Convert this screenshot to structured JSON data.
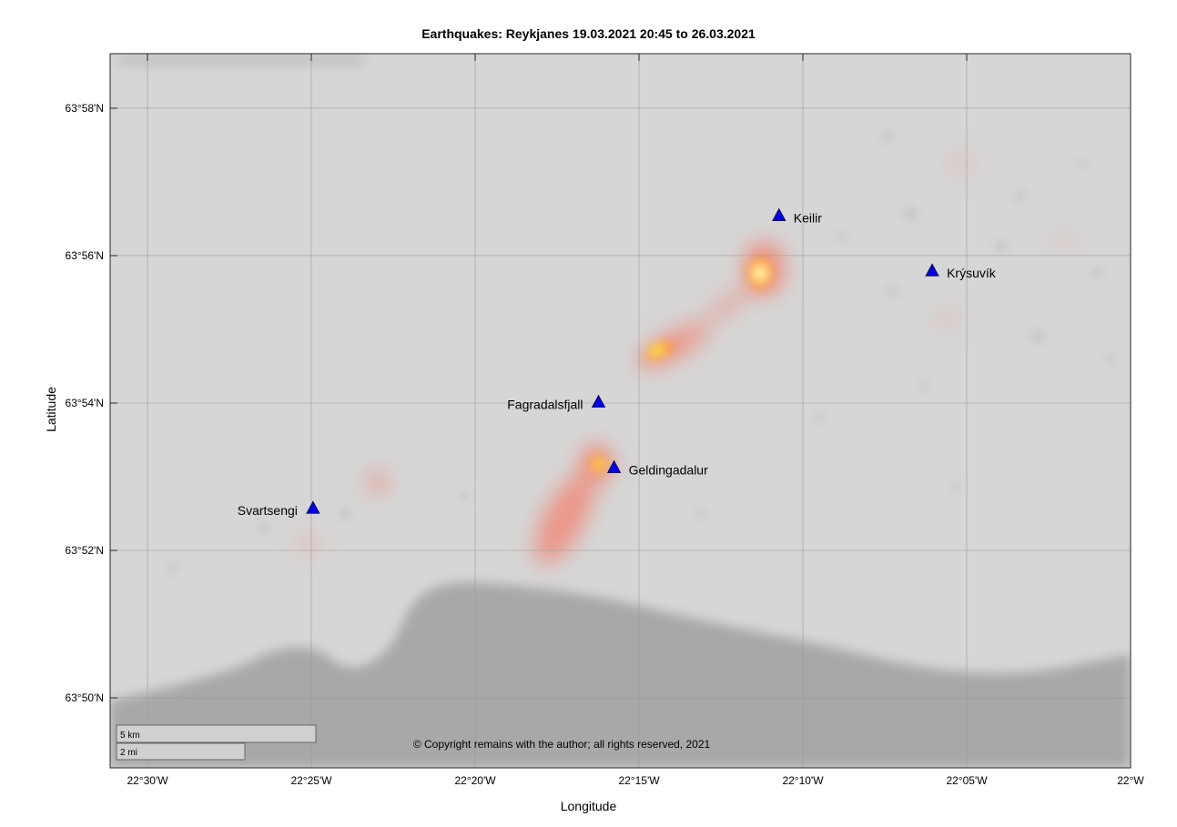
{
  "title": "Earthquakes: Reykjanes 19.03.2021 20:45 to 26.03.2021",
  "xlabel": "Longitude",
  "ylabel": "Latitude",
  "copyright": "© Copyright remains with the author; all rights reserved, 2021",
  "scalebar": {
    "km": "5 km",
    "mi": "2 mi"
  },
  "lat_ticks": [
    {
      "label": "63°58'N",
      "lat": 63.96667
    },
    {
      "label": "63°56'N",
      "lat": 63.93333
    },
    {
      "label": "63°54'N",
      "lat": 63.9
    },
    {
      "label": "63°52'N",
      "lat": 63.86667
    },
    {
      "label": "63°50'N",
      "lat": 63.83333
    }
  ],
  "lon_ticks": [
    {
      "label": "22°30'W",
      "lon": -22.5
    },
    {
      "label": "22°25'W",
      "lon": -22.41667
    },
    {
      "label": "22°20'W",
      "lon": -22.33333
    },
    {
      "label": "22°15'W",
      "lon": -22.25
    },
    {
      "label": "22°10'W",
      "lon": -22.16667
    },
    {
      "label": "22°05'W",
      "lon": -22.08333
    },
    {
      "label": "22°W",
      "lon": -22.0
    }
  ],
  "map_extent": {
    "lon_min": -22.519,
    "lon_max": -22.0,
    "lat_min": 63.8175,
    "lat_max": 63.979
  },
  "landmarks": [
    {
      "name": "Keilir",
      "lon": -22.1788,
      "lat": 63.9425,
      "label_side": "right"
    },
    {
      "name": "Krýsuvík",
      "lon": -22.1009,
      "lat": 63.93,
      "label_side": "right"
    },
    {
      "name": "Fagradalsfjall",
      "lon": -22.2706,
      "lat": 63.9003,
      "label_side": "left"
    },
    {
      "name": "Geldingadalur",
      "lon": -22.2627,
      "lat": 63.8855,
      "label_side": "right"
    },
    {
      "name": "Svartsengi",
      "lon": -22.4158,
      "lat": 63.8763,
      "label_side": "left"
    }
  ],
  "colors": {
    "land": "#d6d6d6",
    "sea": "#a8a8a8",
    "marker": "#0000ee",
    "heat_low": "#f08a7a",
    "heat_mid": "#ff9933",
    "heat_high": "#ffff44"
  }
}
